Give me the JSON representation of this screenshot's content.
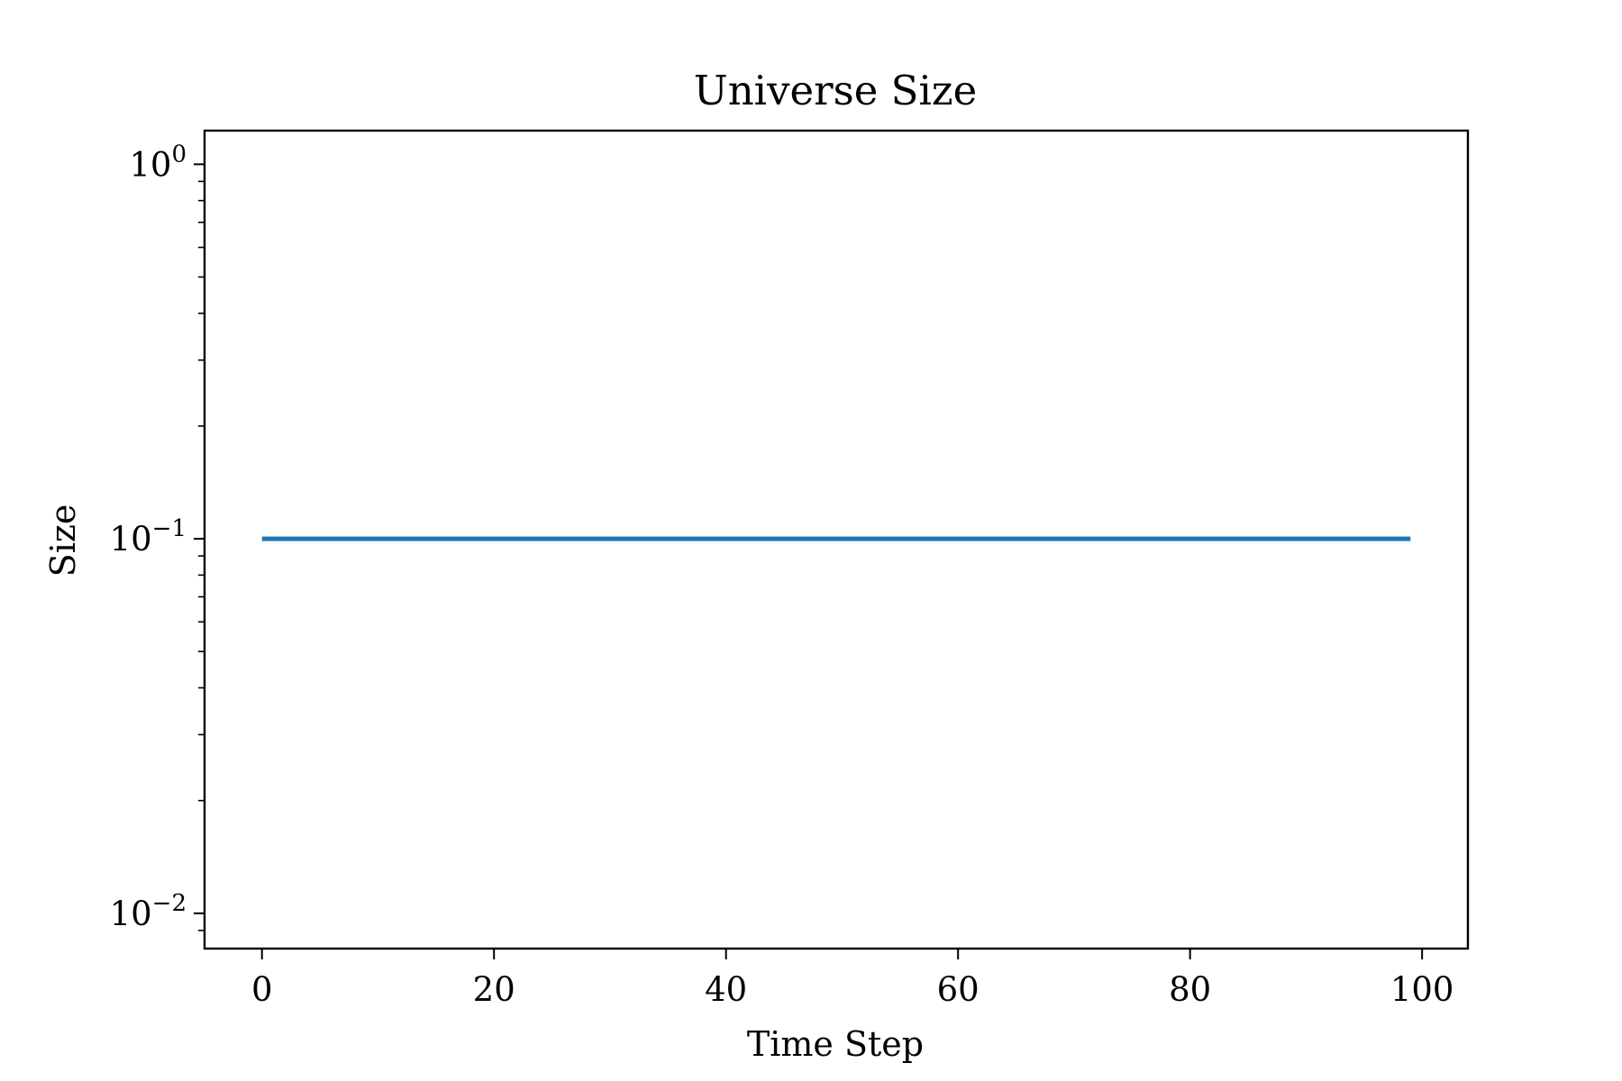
{
  "chart_data": {
    "type": "line",
    "title": "Universe Size",
    "xlabel": "Time Step",
    "ylabel": "Size",
    "yscale": "log",
    "xlim": [
      -4.95,
      103.95
    ],
    "ylim": [
      0.00805,
      1.23
    ],
    "xticks": [
      0,
      20,
      40,
      60,
      80,
      100
    ],
    "yticks": [
      {
        "value": 1,
        "base": "10",
        "exp": "0"
      },
      {
        "value": 0.1,
        "base": "10",
        "exp": "−1"
      },
      {
        "value": 0.01,
        "base": "10",
        "exp": "−2"
      }
    ],
    "grid": false,
    "series": [
      {
        "color": "#1f77b4",
        "x_start": 0,
        "x_end": 99,
        "value": 0.1
      }
    ]
  }
}
